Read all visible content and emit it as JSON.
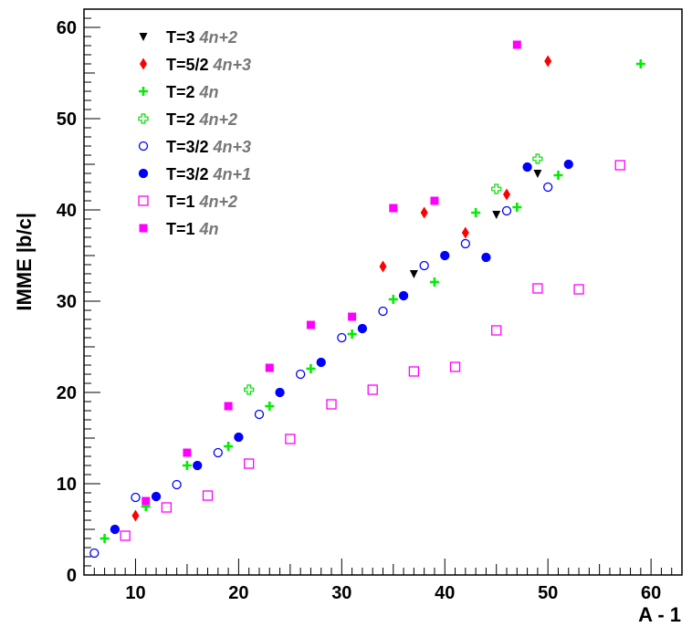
{
  "chart_data": {
    "type": "scatter",
    "xlabel": "A - 1",
    "ylabel": "IMME |b/c|",
    "xlim": [
      5,
      63
    ],
    "ylim": [
      0,
      62
    ],
    "x_ticks": [
      10,
      20,
      30,
      40,
      50,
      60
    ],
    "y_ticks": [
      0,
      10,
      20,
      30,
      40,
      50,
      60
    ],
    "grid": false,
    "legend_position": "top-left",
    "series": [
      {
        "name": "T=3",
        "name_suffix": "4n+2",
        "marker": "triangle-down",
        "filled": true,
        "color": "#000000",
        "points": [
          [
            37,
            33.0
          ],
          [
            45,
            39.5
          ],
          [
            49,
            44.0
          ]
        ]
      },
      {
        "name": "T=5/2",
        "name_suffix": "4n+3",
        "marker": "diamond",
        "filled": true,
        "color": "#ff0000",
        "points": [
          [
            10,
            6.5
          ],
          [
            34,
            33.8
          ],
          [
            38,
            39.7
          ],
          [
            42,
            37.5
          ],
          [
            46,
            41.7
          ],
          [
            50,
            56.3
          ]
        ]
      },
      {
        "name": "T=2",
        "name_suffix": "4n",
        "marker": "cross",
        "filled": true,
        "color": "#00ee00",
        "points": [
          [
            7,
            4.0
          ],
          [
            11,
            7.5
          ],
          [
            15,
            12.0
          ],
          [
            19,
            14.1
          ],
          [
            23,
            18.5
          ],
          [
            27,
            22.6
          ],
          [
            31,
            26.4
          ],
          [
            35,
            30.2
          ],
          [
            39,
            32.1
          ],
          [
            43,
            39.7
          ],
          [
            47,
            40.3
          ],
          [
            51,
            43.8
          ],
          [
            59,
            56.0
          ]
        ]
      },
      {
        "name": "T=2",
        "name_suffix": "4n+2",
        "marker": "cross",
        "filled": false,
        "color": "#00dd00",
        "points": [
          [
            21,
            20.3
          ],
          [
            45,
            42.3
          ],
          [
            49,
            45.6
          ]
        ]
      },
      {
        "name": "T=3/2",
        "name_suffix": "4n+3",
        "marker": "circle",
        "filled": false,
        "color": "#0000ff",
        "points": [
          [
            6,
            2.4
          ],
          [
            10,
            8.5
          ],
          [
            14,
            9.9
          ],
          [
            18,
            13.4
          ],
          [
            22,
            17.6
          ],
          [
            26,
            22.0
          ],
          [
            30,
            26.0
          ],
          [
            34,
            28.9
          ],
          [
            38,
            33.9
          ],
          [
            42,
            36.3
          ],
          [
            46,
            39.9
          ],
          [
            50,
            42.5
          ]
        ]
      },
      {
        "name": "T=3/2",
        "name_suffix": "4n+1",
        "marker": "circle",
        "filled": true,
        "color": "#0000ff",
        "points": [
          [
            8,
            5.0
          ],
          [
            12,
            8.6
          ],
          [
            16,
            12.0
          ],
          [
            20,
            15.1
          ],
          [
            24,
            20.0
          ],
          [
            28,
            23.3
          ],
          [
            32,
            27.0
          ],
          [
            36,
            30.6
          ],
          [
            40,
            35.0
          ],
          [
            44,
            34.8
          ],
          [
            48,
            44.7
          ],
          [
            52,
            45.0
          ]
        ]
      },
      {
        "name": "T=1",
        "name_suffix": "4n+2",
        "marker": "square",
        "filled": false,
        "color": "#ff00ff",
        "points": [
          [
            9,
            4.3
          ],
          [
            13,
            7.4
          ],
          [
            17,
            8.7
          ],
          [
            21,
            12.2
          ],
          [
            25,
            14.9
          ],
          [
            29,
            18.7
          ],
          [
            33,
            20.3
          ],
          [
            37,
            22.3
          ],
          [
            41,
            22.8
          ],
          [
            45,
            26.8
          ],
          [
            49,
            31.4
          ],
          [
            53,
            31.3
          ],
          [
            57,
            44.9
          ]
        ]
      },
      {
        "name": "T=1",
        "name_suffix": "4n",
        "marker": "square",
        "filled": true,
        "color": "#ff00ff",
        "points": [
          [
            11,
            8.1
          ],
          [
            15,
            13.4
          ],
          [
            19,
            18.5
          ],
          [
            23,
            22.7
          ],
          [
            27,
            27.4
          ],
          [
            31,
            28.3
          ],
          [
            35,
            40.2
          ],
          [
            39,
            41.0
          ],
          [
            47,
            58.1
          ]
        ]
      }
    ]
  }
}
